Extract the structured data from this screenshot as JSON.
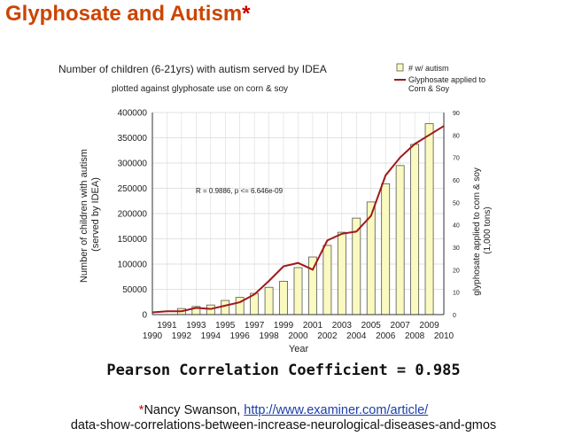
{
  "slide": {
    "title": "Glyphosate and Autism",
    "title_marker": "*",
    "correlation_text": "Pearson Correlation Coefficient = 0.985",
    "citation_marker": "*",
    "citation_author": "Nancy Swanson, ",
    "citation_link": "http://www.examiner.com/article/",
    "citation_link_rest": "data-show-correlations-between-increase-neurological-diseases-and-gmos"
  },
  "colors": {
    "title": "#cc4400",
    "bar_fill": "#fafac0",
    "bar_stroke": "#555555",
    "line": "#a01818",
    "grid": "#d9d9d9"
  },
  "chart_data": {
    "type": "bar",
    "title": "Number of children (6-21yrs) with autism served by IDEA",
    "subtitle": "plotted against glyphosate use on corn & soy",
    "annotation": "R = 0.9886, p <= 6.646e-09",
    "xlabel": "Year",
    "ylabel_left": [
      "Number of children with autism",
      "(served by IDEA)"
    ],
    "ylabel_right": [
      "glyphosate applied to corn & soy",
      "(1,000 tons)"
    ],
    "ylim": [
      0,
      400000
    ],
    "ylim_right": [
      0,
      90
    ],
    "yticks": [
      "0",
      "50000",
      "100000",
      "150000",
      "200000",
      "250000",
      "300000",
      "350000",
      "400000"
    ],
    "yticks_right": [
      "0",
      "10",
      "20",
      "30",
      "40",
      "50",
      "60",
      "70",
      "80",
      "90"
    ],
    "xticks_upper": [
      "1991",
      "1993",
      "1995",
      "1997",
      "1999",
      "2001",
      "2003",
      "2005",
      "2007",
      "2009"
    ],
    "xticks_lower": [
      "1990",
      "1992",
      "1994",
      "1996",
      "1998",
      "2000",
      "2002",
      "2004",
      "2006",
      "2008",
      "2010"
    ],
    "grid": true,
    "legend_position": "top-right",
    "series": [
      {
        "name": "# w/ autism",
        "kind": "bar",
        "x": [
          1992,
          1993,
          1994,
          1995,
          1996,
          1997,
          1998,
          1999,
          2000,
          2001,
          2002,
          2003,
          2004,
          2005,
          2006,
          2007,
          2008,
          2009
        ],
        "values": [
          12000,
          16000,
          19000,
          28000,
          34000,
          42000,
          54000,
          66000,
          93000,
          114000,
          137000,
          163000,
          191000,
          223000,
          259000,
          295000,
          337000,
          378000
        ]
      },
      {
        "name": "Glyphosate applied to Corn & Soy",
        "kind": "line",
        "x": [
          1990,
          1991,
          1992,
          1993,
          1994,
          1995,
          1996,
          1997,
          1998,
          1999,
          2000,
          2001,
          2002,
          2003,
          2004,
          2005,
          2006,
          2007,
          2008,
          2009,
          2010
        ],
        "values": [
          1,
          1.5,
          1.5,
          3,
          2.5,
          4,
          5.5,
          9,
          15,
          21.5,
          23,
          20,
          33,
          36,
          37,
          44,
          62,
          70,
          76,
          80,
          84
        ]
      }
    ]
  }
}
